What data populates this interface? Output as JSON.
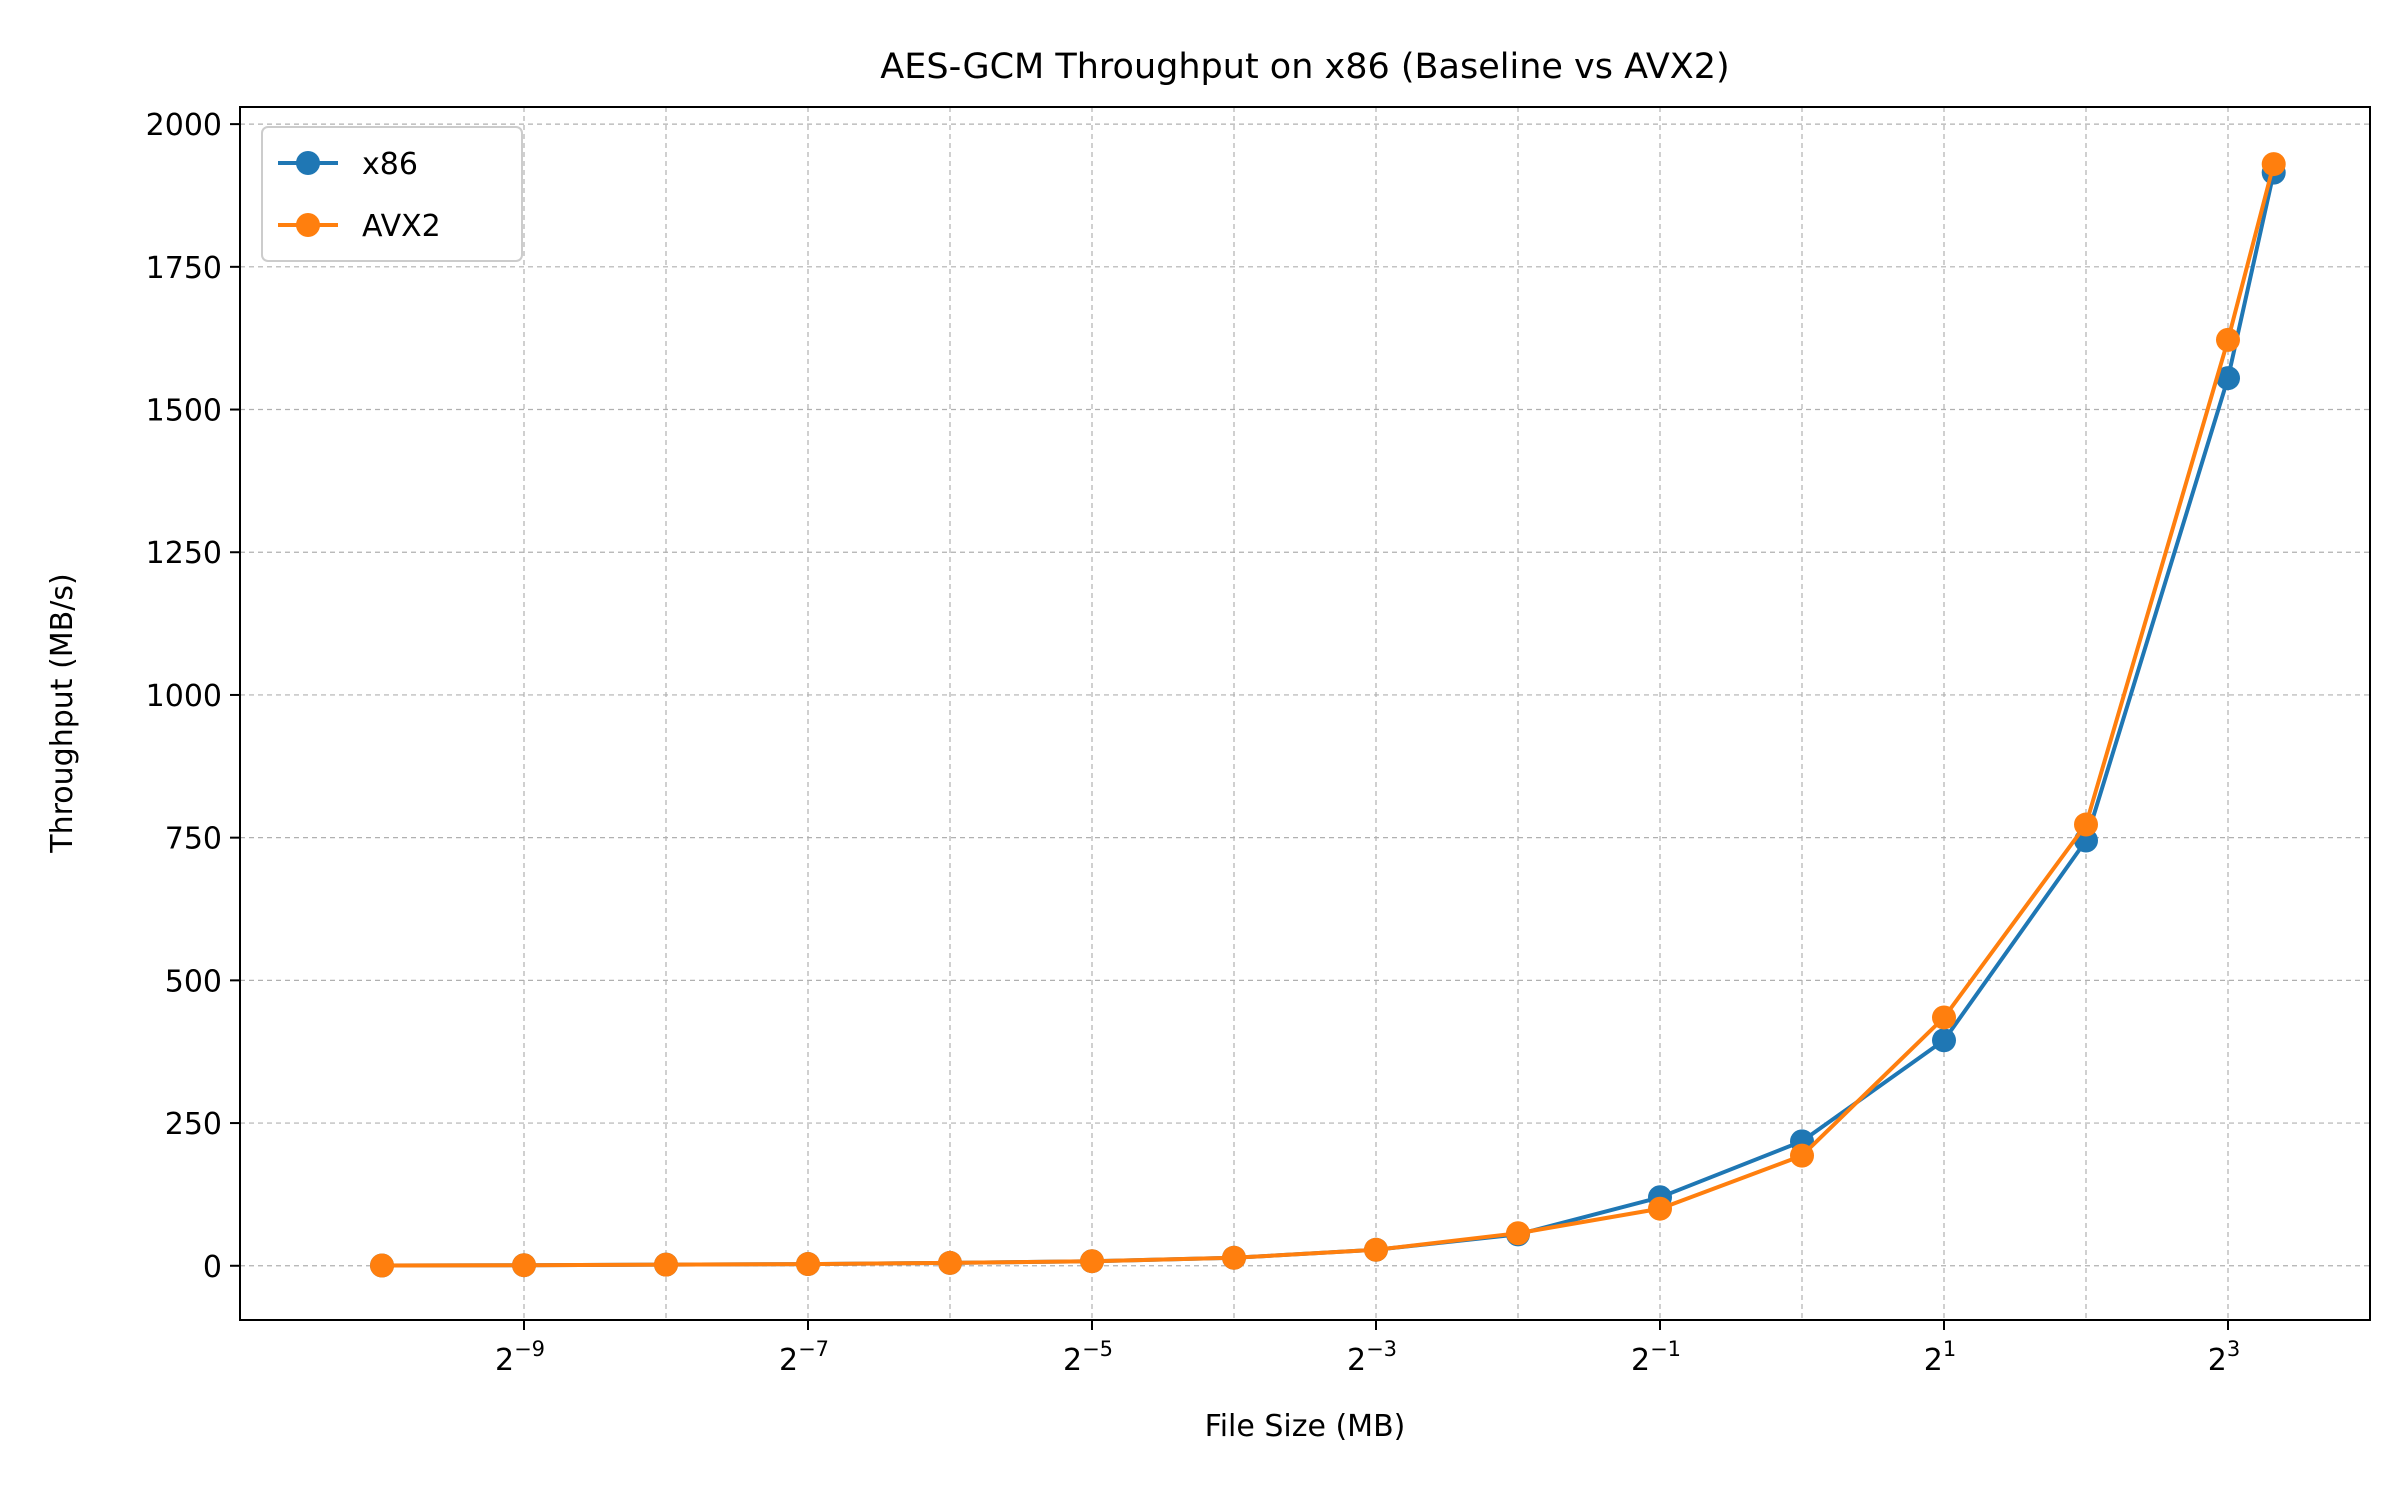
{
  "chart_data": {
    "type": "line",
    "title": "AES-GCM Throughput on x86 (Baseline vs AVX2)",
    "xlabel": "File Size (MB)",
    "ylabel": "Throughput (MB/s)",
    "x_scale": "log2",
    "x": [
      0.0009765625,
      0.001953125,
      0.00390625,
      0.0078125,
      0.015625,
      0.03125,
      0.0625,
      0.125,
      0.25,
      0.5,
      1,
      2,
      4,
      8,
      10
    ],
    "xlim": [
      0.00048828125,
      16
    ],
    "ylim": [
      -95,
      2030
    ],
    "xticks": [
      {
        "value": 0.001953125,
        "base": "2",
        "exp": "−9"
      },
      {
        "value": 0.0078125,
        "base": "2",
        "exp": "−7"
      },
      {
        "value": 0.03125,
        "base": "2",
        "exp": "−5"
      },
      {
        "value": 0.125,
        "base": "2",
        "exp": "−3"
      },
      {
        "value": 0.5,
        "base": "2",
        "exp": "−1"
      },
      {
        "value": 2,
        "base": "2",
        "exp": "1"
      },
      {
        "value": 8,
        "base": "2",
        "exp": "3"
      }
    ],
    "x_minor_grid": [
      0.00390625,
      0.015625,
      0.0625,
      0.25,
      1,
      4
    ],
    "yticks": [
      0,
      250,
      500,
      750,
      1000,
      1250,
      1500,
      1750,
      2000
    ],
    "grid": true,
    "legend_position": "top-left",
    "series": [
      {
        "name": "x86",
        "color": "#1f77b4",
        "values": [
          0.5,
          1,
          2,
          3,
          5,
          8,
          14,
          28,
          55,
          120,
          218,
          395,
          745,
          1555,
          1915
        ]
      },
      {
        "name": "AVX2",
        "color": "#ff7f0e",
        "values": [
          0.5,
          1,
          2,
          3,
          5,
          8,
          14,
          28,
          57,
          100,
          193,
          435,
          773,
          1622,
          1930
        ]
      }
    ]
  }
}
